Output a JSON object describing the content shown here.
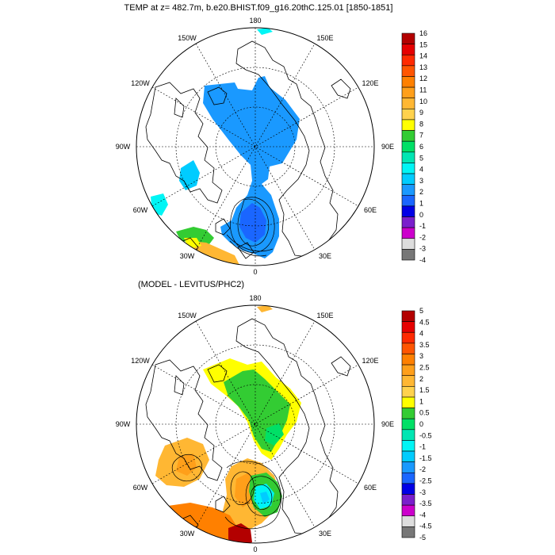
{
  "panels": [
    {
      "title": "TEMP at z= 482.7m, b.e20.BHIST.f09_g16.20thC.125.01 [1850-1851]",
      "lon_labels": {
        "n": "180",
        "nw": "150W",
        "ne": "150E",
        "wnw": "120W",
        "ene": "120E",
        "w": "90W",
        "e": "90E",
        "wsw": "60W",
        "ese": "60E",
        "sw": "30W",
        "se": "30E",
        "s": "0"
      },
      "colorbar": {
        "labels": [
          "16",
          "15",
          "14",
          "13",
          "12",
          "11",
          "10",
          "9",
          "8",
          "7",
          "6",
          "5",
          "4",
          "3",
          "2",
          "1",
          "0",
          "-1",
          "-2",
          "-3",
          "-4"
        ],
        "colors": [
          "#b30000",
          "#e60000",
          "#ff2a00",
          "#ff5500",
          "#ff8000",
          "#ff9f1a",
          "#ffb733",
          "#ffd24d",
          "#ffff00",
          "#33cc33",
          "#00e066",
          "#00e6b3",
          "#00f5f5",
          "#00ccff",
          "#1a99ff",
          "#1a66ff",
          "#0000e6",
          "#7a1fcc",
          "#cc00cc",
          "#dddddd",
          "#777777"
        ]
      }
    },
    {
      "title": "(MODEL - LEVITUS/PHC2)",
      "lon_labels": {
        "n": "180",
        "nw": "150W",
        "ne": "150E",
        "wnw": "120W",
        "ene": "120E",
        "w": "90W",
        "e": "90E",
        "wsw": "60W",
        "ese": "60E",
        "sw": "30W",
        "se": "30E",
        "s": "0"
      },
      "colorbar": {
        "labels": [
          "5",
          "4.5",
          "4",
          "3.5",
          "3",
          "2.5",
          "2",
          "1.5",
          "1",
          "0.5",
          "0",
          "-0.5",
          "-1",
          "-1.5",
          "-2",
          "-2.5",
          "-3",
          "-3.5",
          "-4",
          "-4.5",
          "-5"
        ],
        "colors": [
          "#b30000",
          "#e60000",
          "#ff2a00",
          "#ff5500",
          "#ff8000",
          "#ff9f1a",
          "#ffb733",
          "#ffd24d",
          "#ffff00",
          "#33cc33",
          "#00e066",
          "#00e6b3",
          "#00f5f5",
          "#00ccff",
          "#1a99ff",
          "#1a66ff",
          "#0000e6",
          "#7a1fcc",
          "#cc00cc",
          "#dddddd",
          "#777777"
        ]
      }
    }
  ]
}
